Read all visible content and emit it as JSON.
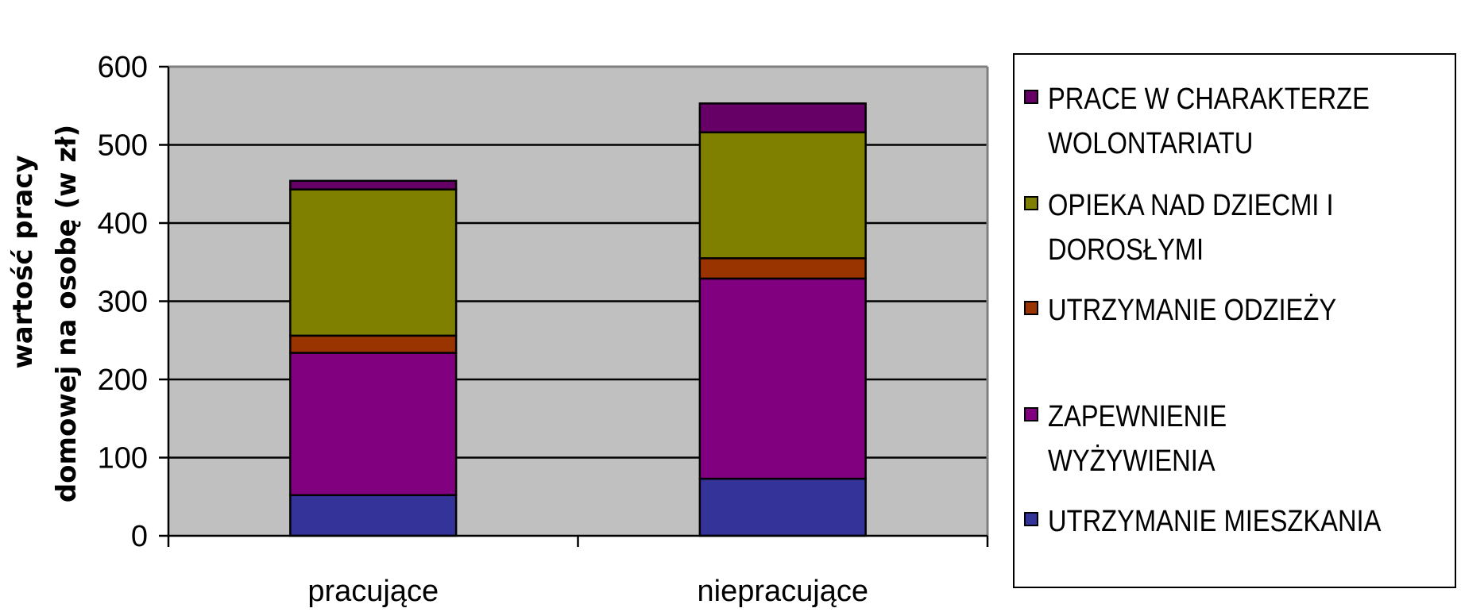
{
  "chart_data": {
    "type": "bar",
    "stacked": true,
    "categories": [
      "pracujące",
      "niepracujące"
    ],
    "series": [
      {
        "name": "UTRZYMANIE MIESZKANIA",
        "color": "#333399",
        "values": [
          52,
          73
        ]
      },
      {
        "name": "ZAPEWNIENIE WYŻYWIENIA",
        "color": "#800080",
        "values": [
          182,
          256
        ]
      },
      {
        "name": "UTRZYMANIE ODZIEŻY",
        "color": "#993300",
        "values": [
          22,
          26
        ]
      },
      {
        "name": "OPIEKA NAD DZIEĆMI I DOROSŁYMI",
        "color": "#808000",
        "values": [
          187,
          161
        ]
      },
      {
        "name": "PRACE W CHARAKTERZE WOLONTARIATU",
        "color": "#660066",
        "values": [
          11,
          37
        ]
      }
    ],
    "ylabel_line1": "wartość pracy",
    "ylabel_line2": "domowej na osobę (w zł)",
    "ylim": [
      0,
      600
    ],
    "yticks": [
      0,
      100,
      200,
      300,
      400,
      500,
      600
    ],
    "grid": true,
    "plot_background": "#c0c0c0",
    "legend_position": "right"
  },
  "legend": {
    "items": [
      {
        "line1": "PRACE W CHARAKTERZE",
        "line2": "WOLONTARIATU",
        "color": "#660066"
      },
      {
        "line1": "OPIEKA NAD DZIECMI I",
        "line2": "DOROSŁYMI",
        "color": "#808000"
      },
      {
        "line1": "UTRZYMANIE ODZIEŻY",
        "line2": "",
        "color": "#993300"
      },
      {
        "line1": "ZAPEWNIENIE WYŻYWIENIA",
        "line2": "",
        "color": "#800080"
      },
      {
        "line1": "UTRZYMANIE MIESZKANIA",
        "line2": "",
        "color": "#333399"
      }
    ]
  }
}
